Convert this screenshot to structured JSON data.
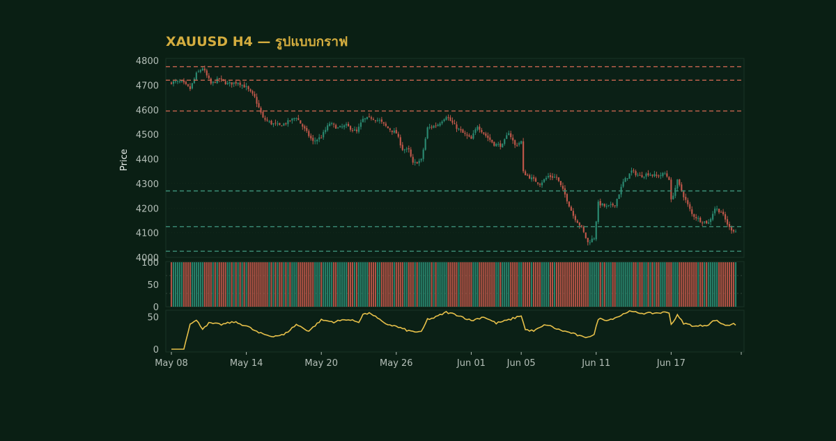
{
  "colors": {
    "background": "#0a1f14",
    "panel": "#0b2016",
    "title": "#d4ad3f",
    "up": "#2b8a72",
    "down": "#c0574a",
    "resistance": "#c9654f",
    "support": "#3c8f78",
    "indicator": "#e8c14a",
    "text": "#b4bfb8"
  },
  "chart_data": {
    "type": "candlestick",
    "title": "XAUUSD H4 — รูปแบบกราฟ",
    "ylabel": "Price",
    "price_axis": {
      "ylim": [
        4000,
        4800
      ],
      "ticks": [
        4000,
        4100,
        4200,
        4300,
        4400,
        4500,
        4600,
        4700,
        4800
      ]
    },
    "x_ticks": [
      "May 08",
      "May 14",
      "May 20",
      "May 26",
      "Jun 01",
      "Jun 05",
      "Jun 11",
      "Jun 17"
    ],
    "x_tick_dates": [
      "2024-05-08",
      "2024-05-14",
      "2024-05-20",
      "2024-05-26",
      "2024-06-01",
      "2024-06-05",
      "2024-06-11",
      "2024-06-17"
    ],
    "date_range": [
      "2024-05-08",
      "2024-06-22"
    ],
    "resistance_levels": [
      4775,
      4720,
      4595
    ],
    "support_levels": [
      4270,
      4125,
      4025
    ],
    "close_anchors": [
      [
        "2024-05-08 00:00",
        4712
      ],
      [
        "2024-05-08 20:00",
        4712
      ],
      [
        "2024-05-09 12:00",
        4685
      ],
      [
        "2024-05-10 00:00",
        4745
      ],
      [
        "2024-05-10 12:00",
        4770
      ],
      [
        "2024-05-11 04:00",
        4705
      ],
      [
        "2024-05-11 20:00",
        4725
      ],
      [
        "2024-05-12 12:00",
        4705
      ],
      [
        "2024-05-13 08:00",
        4712
      ],
      [
        "2024-05-14 00:00",
        4690
      ],
      [
        "2024-05-14 16:00",
        4650
      ],
      [
        "2024-05-15 08:00",
        4565
      ],
      [
        "2024-05-16 00:00",
        4545
      ],
      [
        "2024-05-16 16:00",
        4535
      ],
      [
        "2024-05-17 08:00",
        4550
      ],
      [
        "2024-05-18 00:00",
        4570
      ],
      [
        "2024-05-18 16:00",
        4520
      ],
      [
        "2024-05-19 08:00",
        4470
      ],
      [
        "2024-05-20 00:00",
        4490
      ],
      [
        "2024-05-20 16:00",
        4545
      ],
      [
        "2024-05-21 08:00",
        4525
      ],
      [
        "2024-05-22 00:00",
        4535
      ],
      [
        "2024-05-22 20:00",
        4510
      ],
      [
        "2024-05-23 08:00",
        4560
      ],
      [
        "2024-05-24 00:00",
        4568
      ],
      [
        "2024-05-24 16:00",
        4555
      ],
      [
        "2024-05-25 08:00",
        4525
      ],
      [
        "2024-05-26 00:00",
        4505
      ],
      [
        "2024-05-26 12:00",
        4440
      ],
      [
        "2024-05-27 00:00",
        4435
      ],
      [
        "2024-05-27 08:00",
        4380
      ],
      [
        "2024-05-28 00:00",
        4395
      ],
      [
        "2024-05-28 12:00",
        4525
      ],
      [
        "2024-05-29 08:00",
        4540
      ],
      [
        "2024-05-30 00:00",
        4575
      ],
      [
        "2024-05-30 16:00",
        4535
      ],
      [
        "2024-05-31 08:00",
        4505
      ],
      [
        "2024-06-01 00:00",
        4480
      ],
      [
        "2024-06-01 12:00",
        4535
      ],
      [
        "2024-06-02 04:00",
        4495
      ],
      [
        "2024-06-02 20:00",
        4460
      ],
      [
        "2024-06-03 12:00",
        4455
      ],
      [
        "2024-06-04 00:00",
        4510
      ],
      [
        "2024-06-04 12:00",
        4455
      ],
      [
        "2024-06-05 00:00",
        4470
      ],
      [
        "2024-06-05 04:00",
        4345
      ],
      [
        "2024-06-05 20:00",
        4320
      ],
      [
        "2024-06-06 12:00",
        4300
      ],
      [
        "2024-06-07 04:00",
        4330
      ],
      [
        "2024-06-07 20:00",
        4325
      ],
      [
        "2024-06-08 12:00",
        4255
      ],
      [
        "2024-06-09 04:00",
        4170
      ],
      [
        "2024-06-09 20:00",
        4120
      ],
      [
        "2024-06-10 08:00",
        4060
      ],
      [
        "2024-06-10 20:00",
        4080
      ],
      [
        "2024-06-11 04:00",
        4220
      ],
      [
        "2024-06-11 20:00",
        4205
      ],
      [
        "2024-06-12 12:00",
        4215
      ],
      [
        "2024-06-13 04:00",
        4305
      ],
      [
        "2024-06-13 20:00",
        4350
      ],
      [
        "2024-06-14 12:00",
        4330
      ],
      [
        "2024-06-15 04:00",
        4340
      ],
      [
        "2024-06-15 20:00",
        4330
      ],
      [
        "2024-06-16 12:00",
        4340
      ],
      [
        "2024-06-16 20:00",
        4320
      ],
      [
        "2024-06-17 00:00",
        4230
      ],
      [
        "2024-06-17 12:00",
        4310
      ],
      [
        "2024-06-18 00:00",
        4250
      ],
      [
        "2024-06-18 16:00",
        4175
      ],
      [
        "2024-06-19 08:00",
        4150
      ],
      [
        "2024-06-20 00:00",
        4140
      ],
      [
        "2024-06-20 12:00",
        4200
      ],
      [
        "2024-06-21 00:00",
        4185
      ],
      [
        "2024-06-21 16:00",
        4120
      ],
      [
        "2024-06-22 08:00",
        4100
      ]
    ],
    "volume_axis": {
      "ylim": [
        0,
        100
      ],
      "ticks": [
        0,
        50,
        100
      ],
      "reference_lines": [
        30,
        70
      ]
    },
    "indicator_axis": {
      "ylim": [
        0,
        60
      ],
      "ticks": [
        0,
        50
      ]
    },
    "indicator_anchors": [
      [
        "2024-05-08 00:00",
        0
      ],
      [
        "2024-05-09 00:00",
        0
      ],
      [
        "2024-05-09 12:00",
        40
      ],
      [
        "2024-05-10 00:00",
        44
      ],
      [
        "2024-05-10 12:00",
        32
      ],
      [
        "2024-05-11 00:00",
        40
      ],
      [
        "2024-05-12 00:00",
        38
      ],
      [
        "2024-05-13 00:00",
        42
      ],
      [
        "2024-05-14 00:00",
        36
      ],
      [
        "2024-05-15 00:00",
        25
      ],
      [
        "2024-05-16 00:00",
        20
      ],
      [
        "2024-05-17 00:00",
        22
      ],
      [
        "2024-05-18 00:00",
        38
      ],
      [
        "2024-05-19 00:00",
        28
      ],
      [
        "2024-05-20 00:00",
        45
      ],
      [
        "2024-05-21 00:00",
        42
      ],
      [
        "2024-05-22 00:00",
        46
      ],
      [
        "2024-05-23 00:00",
        42
      ],
      [
        "2024-05-23 08:00",
        54
      ],
      [
        "2024-05-24 00:00",
        55
      ],
      [
        "2024-05-25 00:00",
        40
      ],
      [
        "2024-05-26 00:00",
        35
      ],
      [
        "2024-05-27 00:00",
        28
      ],
      [
        "2024-05-28 00:00",
        26
      ],
      [
        "2024-05-28 12:00",
        46
      ],
      [
        "2024-05-29 00:00",
        48
      ],
      [
        "2024-05-30 00:00",
        57
      ],
      [
        "2024-05-31 00:00",
        52
      ],
      [
        "2024-06-01 00:00",
        44
      ],
      [
        "2024-06-02 00:00",
        50
      ],
      [
        "2024-06-03 00:00",
        40
      ],
      [
        "2024-06-04 00:00",
        45
      ],
      [
        "2024-06-05 00:00",
        52
      ],
      [
        "2024-06-05 08:00",
        30
      ],
      [
        "2024-06-06 00:00",
        28
      ],
      [
        "2024-06-07 00:00",
        38
      ],
      [
        "2024-06-08 00:00",
        30
      ],
      [
        "2024-06-09 00:00",
        25
      ],
      [
        "2024-06-10 00:00",
        18
      ],
      [
        "2024-06-10 20:00",
        22
      ],
      [
        "2024-06-11 04:00",
        47
      ],
      [
        "2024-06-12 00:00",
        45
      ],
      [
        "2024-06-13 00:00",
        52
      ],
      [
        "2024-06-13 12:00",
        58
      ],
      [
        "2024-06-14 00:00",
        57
      ],
      [
        "2024-06-15 00:00",
        55
      ],
      [
        "2024-06-16 00:00",
        56
      ],
      [
        "2024-06-16 20:00",
        57
      ],
      [
        "2024-06-17 00:00",
        38
      ],
      [
        "2024-06-17 12:00",
        52
      ],
      [
        "2024-06-18 00:00",
        40
      ],
      [
        "2024-06-19 00:00",
        35
      ],
      [
        "2024-06-20 00:00",
        38
      ],
      [
        "2024-06-20 12:00",
        45
      ],
      [
        "2024-06-21 00:00",
        40
      ],
      [
        "2024-06-21 12:00",
        36
      ],
      [
        "2024-06-22 00:00",
        40
      ],
      [
        "2024-06-22 08:00",
        36
      ]
    ]
  }
}
